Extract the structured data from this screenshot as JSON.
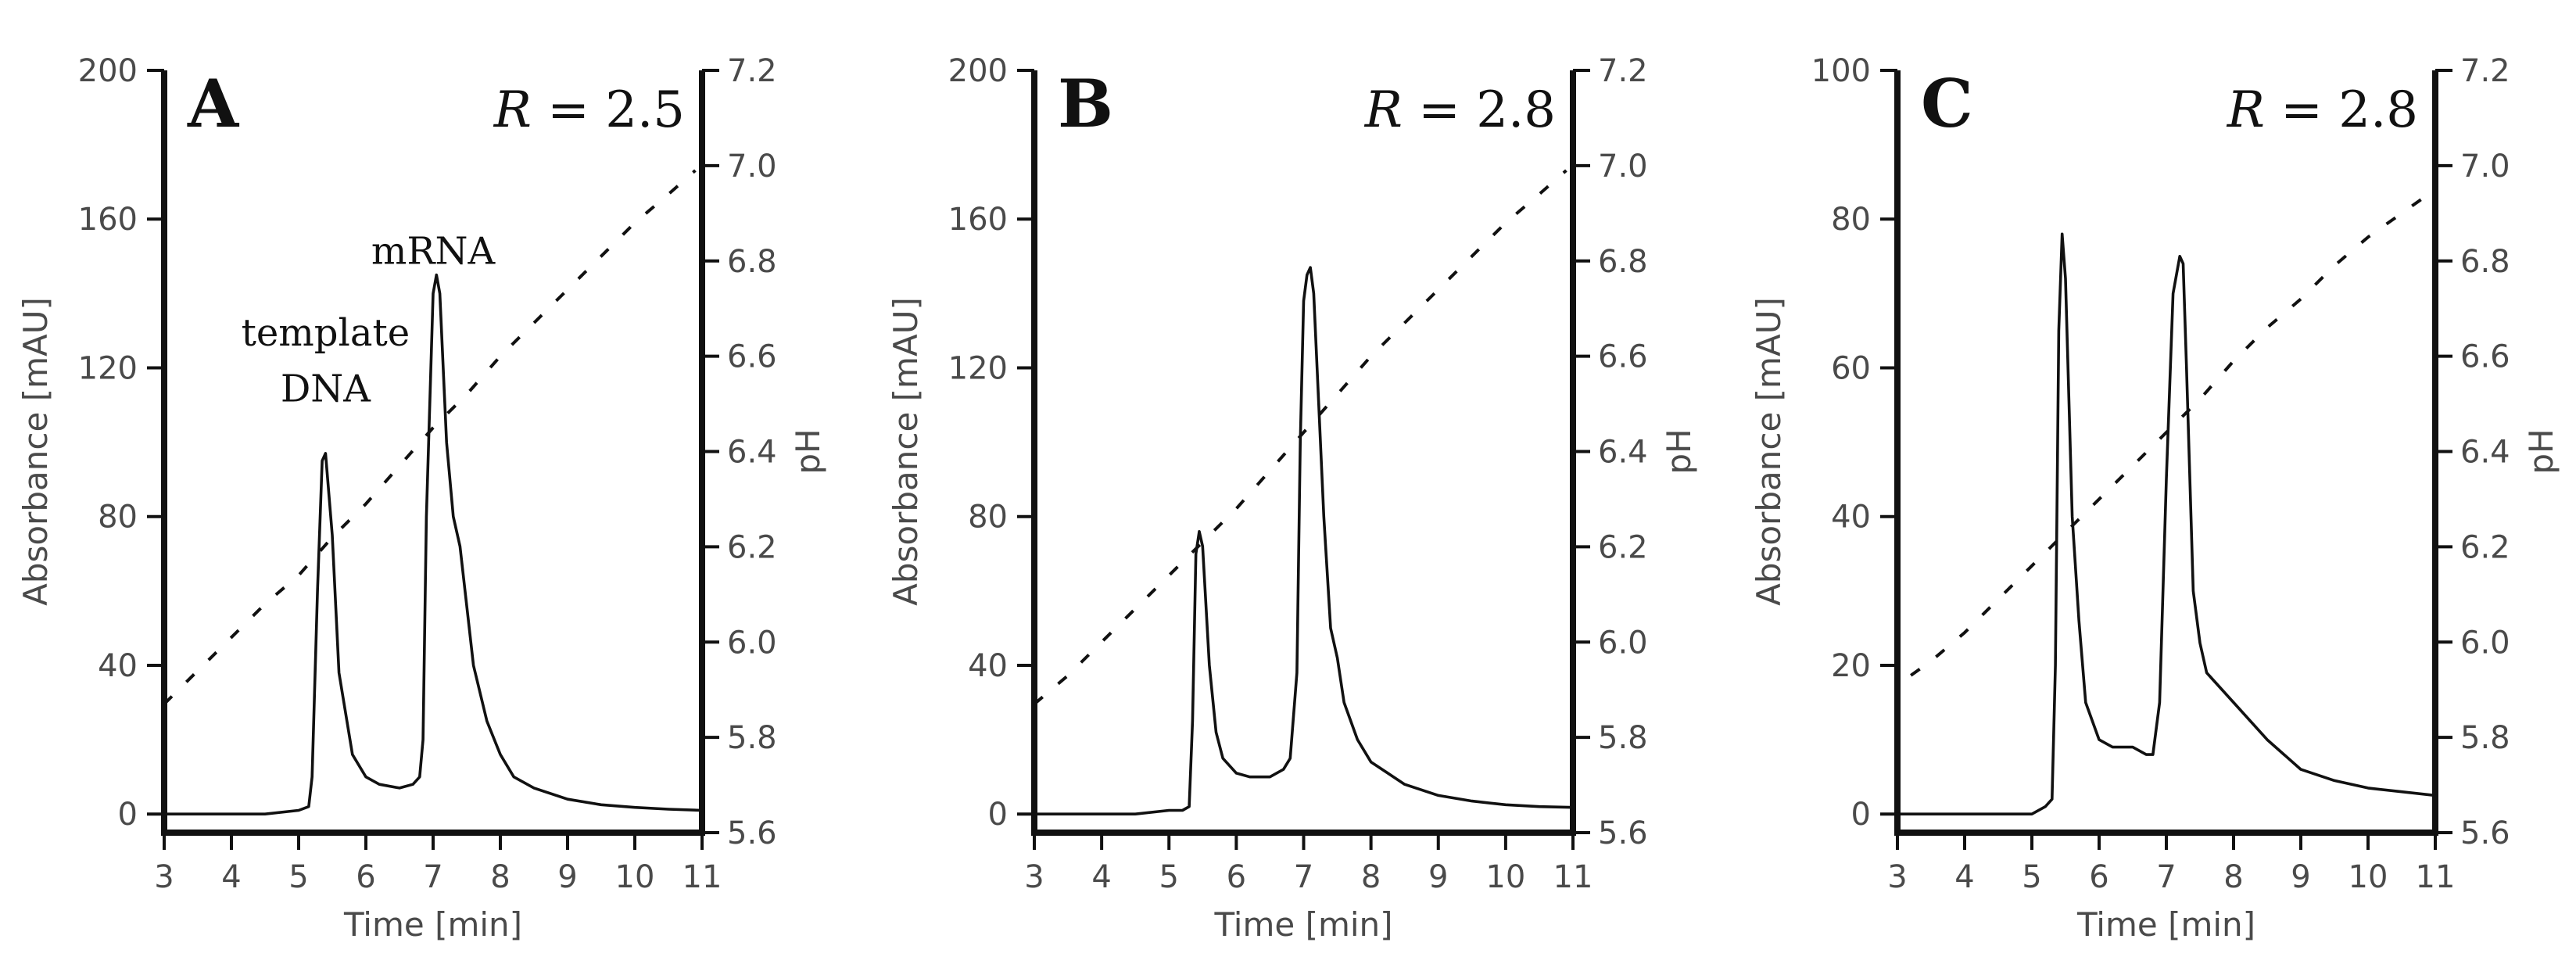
{
  "chart_data": [
    {
      "type": "line",
      "panel_label": "A",
      "r_symbol": "R",
      "r_value": "= 2.5",
      "xlabel": "Time [min]",
      "ylabel": "Absorbance [mAU]",
      "y2label": "pH",
      "xlim": [
        3,
        11
      ],
      "ylim": [
        -5,
        200
      ],
      "y2lim": [
        5.6,
        7.2
      ],
      "xticks": [
        "3",
        "4",
        "5",
        "6",
        "7",
        "8",
        "9",
        "10",
        "11"
      ],
      "yticks": [
        "0",
        "40",
        "80",
        "120",
        "160",
        "200"
      ],
      "y2ticks": [
        "5.6",
        "5.8",
        "6.0",
        "6.2",
        "6.4",
        "6.6",
        "6.8",
        "7.0",
        "7.2"
      ],
      "annotations": [
        {
          "text": "template",
          "x": 5.4,
          "y": 126
        },
        {
          "text": "DNA",
          "x": 5.4,
          "y": 111
        },
        {
          "text": "mRNA",
          "x": 7.0,
          "y": 148
        }
      ],
      "series": [
        {
          "name": "Absorbance",
          "axis": "left",
          "x": [
            3,
            4,
            4.5,
            5,
            5.15,
            5.2,
            5.28,
            5.35,
            5.4,
            5.5,
            5.6,
            5.8,
            6,
            6.2,
            6.5,
            6.7,
            6.8,
            6.85,
            6.9,
            7.0,
            7.05,
            7.1,
            7.2,
            7.3,
            7.4,
            7.6,
            7.8,
            8,
            8.2,
            8.5,
            9,
            9.5,
            10,
            10.5,
            11
          ],
          "y": [
            0,
            0,
            0,
            1,
            2,
            10,
            60,
            95,
            97,
            75,
            38,
            16,
            10,
            8,
            7,
            8,
            10,
            20,
            80,
            140,
            145,
            140,
            100,
            80,
            72,
            40,
            25,
            16,
            10,
            7,
            4,
            2.5,
            1.8,
            1.3,
            1
          ]
        },
        {
          "name": "pH",
          "axis": "right",
          "x": [
            3.0,
            3.5,
            4.0,
            4.5,
            5.0,
            5.5,
            6.0,
            6.5,
            7.0,
            7.5,
            8.0,
            8.5,
            9.0,
            9.5,
            10.0,
            10.5,
            10.9
          ],
          "y": [
            5.87,
            5.94,
            6.01,
            6.08,
            6.14,
            6.22,
            6.29,
            6.37,
            6.45,
            6.52,
            6.6,
            6.67,
            6.74,
            6.81,
            6.88,
            6.94,
            6.99
          ]
        }
      ]
    },
    {
      "type": "line",
      "panel_label": "B",
      "r_symbol": "R",
      "r_value": "= 2.8",
      "xlabel": "Time [min]",
      "ylabel": "Absorbance [mAU]",
      "y2label": "pH",
      "xlim": [
        3,
        11
      ],
      "ylim": [
        -5,
        200
      ],
      "y2lim": [
        5.6,
        7.2
      ],
      "xticks": [
        "3",
        "4",
        "5",
        "6",
        "7",
        "8",
        "9",
        "10",
        "11"
      ],
      "yticks": [
        "0",
        "40",
        "80",
        "120",
        "160",
        "200"
      ],
      "y2ticks": [
        "5.6",
        "5.8",
        "6.0",
        "6.2",
        "6.4",
        "6.6",
        "6.8",
        "7.0",
        "7.2"
      ],
      "annotations": [],
      "series": [
        {
          "name": "Absorbance",
          "axis": "left",
          "x": [
            3,
            4,
            4.5,
            5,
            5.2,
            5.3,
            5.35,
            5.4,
            5.45,
            5.5,
            5.6,
            5.7,
            5.8,
            6,
            6.2,
            6.5,
            6.7,
            6.8,
            6.9,
            6.95,
            7.0,
            7.05,
            7.1,
            7.15,
            7.2,
            7.3,
            7.4,
            7.5,
            7.6,
            7.8,
            8,
            8.5,
            9,
            9.5,
            10,
            10.5,
            11
          ],
          "y": [
            0,
            0,
            0,
            1,
            1,
            2,
            25,
            70,
            76,
            72,
            40,
            22,
            15,
            11,
            10,
            10,
            12,
            15,
            38,
            100,
            138,
            145,
            147,
            140,
            120,
            80,
            50,
            42,
            30,
            20,
            14,
            8,
            5,
            3.5,
            2.5,
            2,
            1.8
          ]
        },
        {
          "name": "pH",
          "axis": "right",
          "x": [
            3.0,
            3.5,
            4.0,
            4.5,
            5.0,
            5.5,
            6.0,
            6.5,
            7.0,
            7.5,
            8.0,
            8.5,
            9.0,
            9.5,
            10.0,
            10.5,
            10.9
          ],
          "y": [
            5.87,
            5.93,
            6.0,
            6.07,
            6.14,
            6.21,
            6.28,
            6.36,
            6.44,
            6.52,
            6.6,
            6.67,
            6.74,
            6.81,
            6.88,
            6.94,
            6.99
          ]
        }
      ]
    },
    {
      "type": "line",
      "panel_label": "C",
      "r_symbol": "R",
      "r_value": "= 2.8",
      "xlabel": "Time [min]",
      "ylabel": "Absorbance [mAU]",
      "y2label": "pH",
      "xlim": [
        3,
        11
      ],
      "ylim": [
        -2.5,
        100
      ],
      "y2lim": [
        5.6,
        7.2
      ],
      "xticks": [
        "3",
        "4",
        "5",
        "6",
        "7",
        "8",
        "9",
        "10",
        "11"
      ],
      "yticks": [
        "0",
        "20",
        "40",
        "60",
        "80",
        "100"
      ],
      "y2ticks": [
        "5.6",
        "5.8",
        "6.0",
        "6.2",
        "6.4",
        "6.6",
        "6.8",
        "7.0",
        "7.2"
      ],
      "annotations": [],
      "series": [
        {
          "name": "Absorbance",
          "axis": "left",
          "x": [
            3,
            4,
            4.5,
            5,
            5.2,
            5.3,
            5.35,
            5.4,
            5.45,
            5.5,
            5.6,
            5.7,
            5.8,
            6,
            6.2,
            6.5,
            6.7,
            6.8,
            6.9,
            7.0,
            7.1,
            7.2,
            7.25,
            7.3,
            7.4,
            7.5,
            7.6,
            7.8,
            8,
            8.5,
            9,
            9.5,
            10,
            10.5,
            11
          ],
          "y": [
            0,
            0,
            0,
            0,
            1,
            2,
            20,
            65,
            78,
            72,
            40,
            26,
            15,
            10,
            9,
            9,
            8,
            8,
            15,
            45,
            70,
            75,
            74,
            60,
            30,
            23,
            19,
            17,
            15,
            10,
            6,
            4.5,
            3.5,
            3,
            2.5
          ]
        },
        {
          "name": "pH",
          "axis": "right",
          "x": [
            3.2,
            3.5,
            4.0,
            4.5,
            5.0,
            5.5,
            6.0,
            6.5,
            7.0,
            7.5,
            8.0,
            8.5,
            9.0,
            9.5,
            10.0,
            10.5,
            10.9
          ],
          "y": [
            5.93,
            5.96,
            6.02,
            6.09,
            6.16,
            6.23,
            6.3,
            6.37,
            6.44,
            6.51,
            6.59,
            6.66,
            6.72,
            6.79,
            6.85,
            6.9,
            6.94
          ]
        }
      ]
    }
  ]
}
